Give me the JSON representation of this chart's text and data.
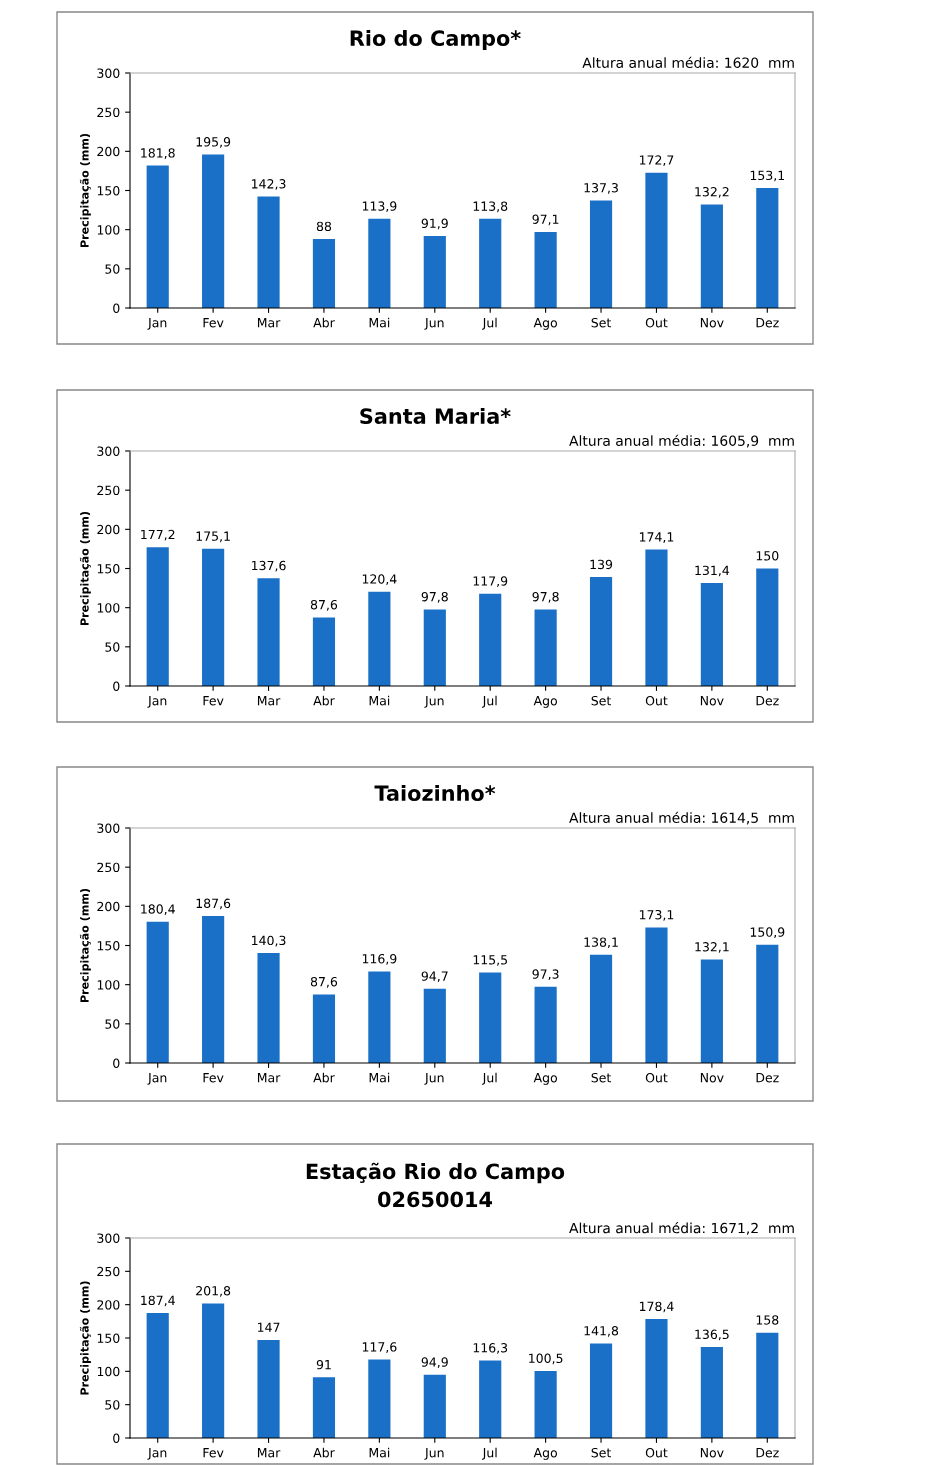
{
  "chart_data": [
    {
      "type": "bar",
      "title": "Rio do Campo*",
      "ylabel": "Precipitação (mm)",
      "annotations": [
        "Altura anual média: 1620  mm"
      ],
      "categories": [
        "Jan",
        "Fev",
        "Mar",
        "Abr",
        "Mai",
        "Jun",
        "Jul",
        "Ago",
        "Set",
        "Out",
        "Nov",
        "Dez"
      ],
      "values": [
        181.8,
        195.9,
        142.3,
        88,
        113.9,
        91.9,
        113.8,
        97.1,
        137.3,
        172.7,
        132.2,
        153.1
      ],
      "value_labels": [
        "181,8",
        "195,9",
        "142,3",
        "88",
        "113,9",
        "91,9",
        "113,8",
        "97,1",
        "137,3",
        "172,7",
        "132,2",
        "153,1"
      ],
      "color": "#1a6fc7",
      "ylim": [
        0,
        300
      ],
      "yticks": [
        0,
        50,
        100,
        150,
        200,
        250,
        300
      ],
      "grid": false
    },
    {
      "type": "bar",
      "title": "Santa Maria*",
      "ylabel": "Precipitação (mm)",
      "annotations": [
        "Altura anual média: 1605,9  mm"
      ],
      "categories": [
        "Jan",
        "Fev",
        "Mar",
        "Abr",
        "Mai",
        "Jun",
        "Jul",
        "Ago",
        "Set",
        "Out",
        "Nov",
        "Dez"
      ],
      "values": [
        177.2,
        175.1,
        137.6,
        87.6,
        120.4,
        97.8,
        117.9,
        97.8,
        139,
        174.1,
        131.4,
        150
      ],
      "value_labels": [
        "177,2",
        "175,1",
        "137,6",
        "87,6",
        "120,4",
        "97,8",
        "117,9",
        "97,8",
        "139",
        "174,1",
        "131,4",
        "150"
      ],
      "color": "#1a6fc7",
      "ylim": [
        0,
        300
      ],
      "yticks": [
        0,
        50,
        100,
        150,
        200,
        250,
        300
      ],
      "grid": false
    },
    {
      "type": "bar",
      "title": "Taiozinho*",
      "ylabel": "Precipitação (mm)",
      "annotations": [
        "Altura anual média: 1614,5  mm"
      ],
      "categories": [
        "Jan",
        "Fev",
        "Mar",
        "Abr",
        "Mai",
        "Jun",
        "Jul",
        "Ago",
        "Set",
        "Out",
        "Nov",
        "Dez"
      ],
      "values": [
        180.4,
        187.6,
        140.3,
        87.6,
        116.9,
        94.7,
        115.5,
        97.3,
        138.1,
        173.1,
        132.1,
        150.9
      ],
      "value_labels": [
        "180,4",
        "187,6",
        "140,3",
        "87,6",
        "116,9",
        "94,7",
        "115,5",
        "97,3",
        "138,1",
        "173,1",
        "132,1",
        "150,9"
      ],
      "color": "#1a6fc7",
      "ylim": [
        0,
        300
      ],
      "yticks": [
        0,
        50,
        100,
        150,
        200,
        250,
        300
      ],
      "grid": false
    },
    {
      "type": "bar",
      "title": "Estação Rio do Campo\n02650014",
      "ylabel": "Precipitação (mm)",
      "annotations": [
        "Altura anual média: 1671,2  mm"
      ],
      "categories": [
        "Jan",
        "Fev",
        "Mar",
        "Abr",
        "Mai",
        "Jun",
        "Jul",
        "Ago",
        "Set",
        "Out",
        "Nov",
        "Dez"
      ],
      "values": [
        187.4,
        201.8,
        147,
        91,
        117.6,
        94.9,
        116.3,
        100.5,
        141.8,
        178.4,
        136.5,
        158
      ],
      "value_labels": [
        "187,4",
        "201,8",
        "147",
        "91",
        "117,6",
        "94,9",
        "116,3",
        "100,5",
        "141,8",
        "178,4",
        "136,5",
        "158"
      ],
      "color": "#1a6fc7",
      "ylim": [
        0,
        300
      ],
      "yticks": [
        0,
        50,
        100,
        150,
        200,
        250,
        300
      ],
      "grid": false
    }
  ]
}
